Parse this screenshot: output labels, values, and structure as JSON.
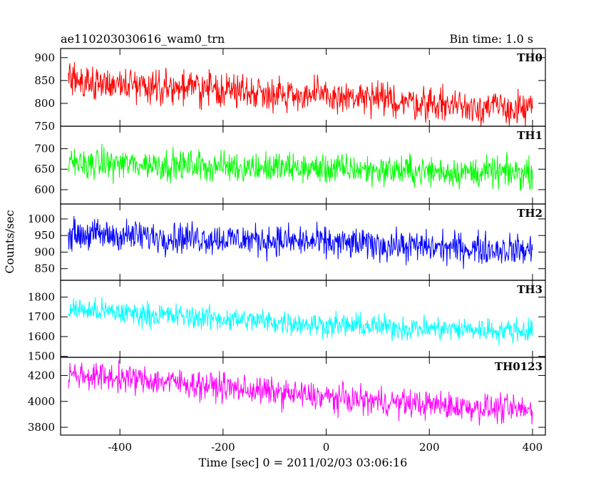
{
  "header": {
    "title": "ae110203030616_wam0_trn",
    "bin_time": "Bin time: 1.0 s"
  },
  "chart_data": {
    "type": "line",
    "title": "ae110203030616_wam0_trn",
    "subtitle": "Bin time: 1.0 s",
    "xlabel": "Time [sec] 0 = 2011/02/03 03:06:16",
    "ylabel": "Counts/sec",
    "xlim": [
      -515,
      425
    ],
    "xticks": [
      -400,
      -200,
      0,
      200,
      400
    ],
    "grid": false,
    "panels": [
      {
        "name": "TH0",
        "color": "#ff0000",
        "ylim": [
          750,
          920
        ],
        "yticks": [
          750,
          800,
          850,
          900
        ],
        "x": [
          -500,
          -400,
          -300,
          -200,
          -100,
          0,
          100,
          200,
          300,
          400
        ],
        "values": [
          850,
          843,
          836,
          830,
          823,
          815,
          808,
          800,
          793,
          785
        ],
        "noise_half_range": 55
      },
      {
        "name": "TH1",
        "color": "#00ff00",
        "ylim": [
          565,
          755
        ],
        "yticks": [
          600,
          650,
          700
        ],
        "x": [
          -500,
          -400,
          -300,
          -200,
          -100,
          0,
          100,
          200,
          300,
          400
        ],
        "values": [
          665,
          663,
          660,
          657,
          654,
          651,
          648,
          645,
          642,
          640
        ],
        "noise_half_range": 55
      },
      {
        "name": "TH2",
        "color": "#0000ff",
        "ylim": [
          815,
          1045
        ],
        "yticks": [
          850,
          900,
          950,
          1000
        ],
        "x": [
          -500,
          -400,
          -300,
          -200,
          -100,
          0,
          100,
          200,
          300,
          400
        ],
        "values": [
          955,
          950,
          945,
          940,
          935,
          928,
          922,
          915,
          910,
          905
        ],
        "noise_half_range": 70
      },
      {
        "name": "TH3",
        "color": "#00ffff",
        "ylim": [
          1495,
          1885
        ],
        "yticks": [
          1500,
          1600,
          1700,
          1800
        ],
        "x": [
          -500,
          -400,
          -300,
          -200,
          -100,
          0,
          100,
          200,
          300,
          400
        ],
        "values": [
          1740,
          1720,
          1705,
          1690,
          1675,
          1660,
          1650,
          1640,
          1635,
          1630
        ],
        "noise_half_range": 90
      },
      {
        "name": "TH0123",
        "color": "#ff00ff",
        "ylim": [
          3740,
          4340
        ],
        "yticks": [
          3800,
          4000,
          4200
        ],
        "x": [
          -500,
          -400,
          -300,
          -200,
          -100,
          0,
          100,
          200,
          300,
          400
        ],
        "values": [
          4210,
          4180,
          4150,
          4110,
          4070,
          4030,
          4000,
          3975,
          3950,
          3930
        ],
        "noise_half_range": 160
      }
    ]
  }
}
